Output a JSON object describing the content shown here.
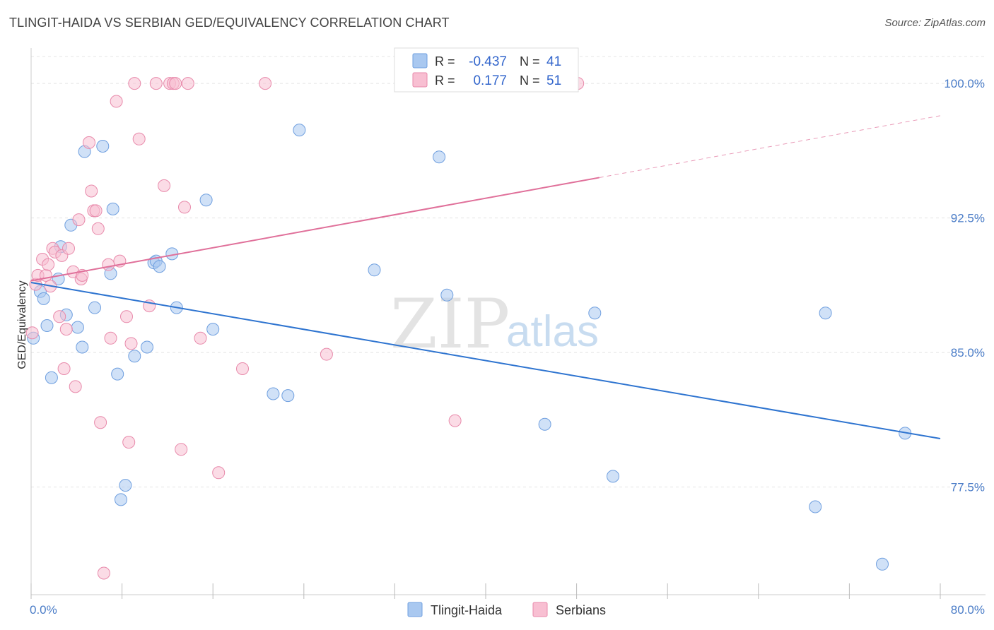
{
  "header": {
    "title": "TLINGIT-HAIDA VS SERBIAN GED/EQUIVALENCY CORRELATION CHART",
    "source": "Source: ZipAtlas.com"
  },
  "watermark": {
    "zip": "ZIP",
    "atlas": "atlas"
  },
  "legend_top": {
    "rows": [
      {
        "r_label": "R =",
        "r_value": "-0.437",
        "n_label": "N =",
        "n_value": "41",
        "color": "#a9c8f0",
        "stroke": "#6f9fdf"
      },
      {
        "r_label": "R =",
        "r_value": "0.177",
        "n_label": "N =",
        "n_value": "51",
        "color": "#f8bfd2",
        "stroke": "#e88aab"
      }
    ]
  },
  "legend_bottom": {
    "items": [
      {
        "label": "Tlingit-Haida",
        "color": "#a9c8f0",
        "stroke": "#6f9fdf"
      },
      {
        "label": "Serbians",
        "color": "#f8bfd2",
        "stroke": "#e88aab"
      }
    ]
  },
  "chart_data": {
    "type": "scatter",
    "title": "TLINGIT-HAIDA VS SERBIAN GED/EQUIVALENCY CORRELATION CHART",
    "xlabel": "",
    "ylabel": "GED/Equivalency",
    "xlim": [
      0,
      80
    ],
    "ylim": [
      71.5,
      101.5
    ],
    "x_ticks": [
      0,
      8,
      16,
      24,
      32,
      40,
      48,
      56,
      64,
      72,
      80
    ],
    "x_tick_labels": [
      {
        "value": 0,
        "label": "0.0%"
      },
      {
        "value": 80,
        "label": "80.0%"
      }
    ],
    "y_ticks": [
      {
        "value": 100,
        "label": "100.0%"
      },
      {
        "value": 92.5,
        "label": "92.5%"
      },
      {
        "value": 85,
        "label": "85.0%"
      },
      {
        "value": 77.5,
        "label": "77.5%"
      }
    ],
    "grid": true,
    "series": [
      {
        "name": "Tlingit-Haida",
        "color": "#a9c8f0",
        "stroke": "#6f9fdf",
        "line_color": "#2e74d0",
        "trend": {
          "x": [
            0,
            80
          ],
          "y": [
            88.9,
            80.2
          ],
          "dashed_from": null
        },
        "points": [
          [
            0.2,
            85.8
          ],
          [
            0.8,
            88.4
          ],
          [
            1.1,
            88.0
          ],
          [
            1.4,
            86.5
          ],
          [
            1.8,
            83.6
          ],
          [
            2.4,
            89.1
          ],
          [
            2.6,
            90.9
          ],
          [
            3.1,
            87.1
          ],
          [
            3.5,
            92.1
          ],
          [
            4.1,
            86.4
          ],
          [
            4.5,
            85.3
          ],
          [
            4.7,
            96.2
          ],
          [
            5.6,
            87.5
          ],
          [
            6.3,
            96.5
          ],
          [
            7.0,
            89.4
          ],
          [
            7.2,
            93.0
          ],
          [
            7.6,
            83.8
          ],
          [
            7.9,
            76.8
          ],
          [
            8.3,
            77.6
          ],
          [
            9.1,
            84.8
          ],
          [
            10.2,
            85.3
          ],
          [
            10.8,
            90.0
          ],
          [
            11.0,
            90.1
          ],
          [
            11.3,
            89.8
          ],
          [
            12.4,
            90.5
          ],
          [
            12.8,
            87.5
          ],
          [
            15.4,
            93.5
          ],
          [
            16.0,
            86.3
          ],
          [
            21.3,
            82.7
          ],
          [
            22.6,
            82.6
          ],
          [
            23.6,
            97.4
          ],
          [
            30.2,
            89.6
          ],
          [
            35.9,
            95.9
          ],
          [
            36.6,
            88.2
          ],
          [
            45.2,
            81.0
          ],
          [
            49.6,
            87.2
          ],
          [
            51.2,
            78.1
          ],
          [
            69.0,
            76.4
          ],
          [
            69.9,
            87.2
          ],
          [
            74.9,
            73.2
          ],
          [
            76.9,
            80.5
          ]
        ]
      },
      {
        "name": "Serbians",
        "color": "#f8bfd2",
        "stroke": "#e88aab",
        "line_color": "#e0709a",
        "trend": {
          "x": [
            0,
            80
          ],
          "y": [
            89.0,
            98.2
          ],
          "dashed_from": 50
        },
        "points": [
          [
            0.1,
            86.1
          ],
          [
            0.4,
            88.8
          ],
          [
            0.6,
            89.3
          ],
          [
            1.0,
            90.2
          ],
          [
            1.3,
            89.3
          ],
          [
            1.5,
            89.9
          ],
          [
            1.7,
            88.7
          ],
          [
            1.9,
            90.8
          ],
          [
            2.1,
            90.6
          ],
          [
            2.5,
            87.0
          ],
          [
            2.7,
            90.4
          ],
          [
            2.9,
            84.1
          ],
          [
            3.1,
            86.3
          ],
          [
            3.3,
            90.8
          ],
          [
            3.7,
            89.5
          ],
          [
            3.9,
            83.1
          ],
          [
            4.2,
            92.4
          ],
          [
            4.4,
            89.1
          ],
          [
            4.5,
            89.3
          ],
          [
            5.1,
            96.7
          ],
          [
            5.3,
            94.0
          ],
          [
            5.5,
            92.9
          ],
          [
            5.7,
            92.9
          ],
          [
            5.9,
            91.9
          ],
          [
            6.1,
            81.1
          ],
          [
            6.4,
            72.7
          ],
          [
            6.8,
            89.9
          ],
          [
            7.0,
            85.8
          ],
          [
            7.5,
            99.0
          ],
          [
            7.8,
            90.1
          ],
          [
            8.4,
            87.0
          ],
          [
            8.6,
            80.0
          ],
          [
            8.8,
            85.5
          ],
          [
            9.1,
            100.0
          ],
          [
            9.5,
            96.9
          ],
          [
            10.4,
            87.6
          ],
          [
            11.0,
            100.0
          ],
          [
            11.7,
            94.3
          ],
          [
            12.2,
            100.0
          ],
          [
            12.5,
            100.0
          ],
          [
            12.7,
            100.0
          ],
          [
            13.2,
            79.6
          ],
          [
            13.5,
            93.1
          ],
          [
            13.8,
            100.0
          ],
          [
            14.9,
            85.8
          ],
          [
            16.5,
            78.3
          ],
          [
            18.6,
            84.1
          ],
          [
            20.6,
            100.0
          ],
          [
            26.0,
            84.9
          ],
          [
            37.3,
            81.2
          ],
          [
            48.1,
            100.0
          ]
        ]
      }
    ]
  }
}
